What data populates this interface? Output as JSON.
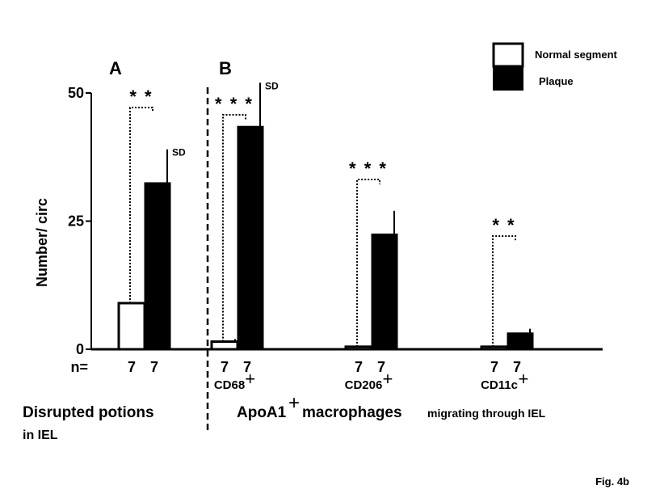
{
  "chart_data": {
    "type": "bar",
    "ylabel": "Number/ circ",
    "ylim": [
      0,
      50
    ],
    "yticks": [
      "0",
      "25",
      "50"
    ],
    "n_prefix": "n=",
    "legend": {
      "position": "top-right",
      "items": [
        {
          "name": "Normal segment",
          "fill": "#ffffff"
        },
        {
          "name": "Plaque",
          "fill": "#000000"
        }
      ]
    },
    "panels": [
      {
        "label": "A",
        "caption": [
          "Disrupted potions",
          "in IEL"
        ]
      },
      {
        "label": "B",
        "caption_main": "ApoA1",
        "caption_plus": "+",
        "caption_mid": "macrophages",
        "caption_small": " migrating through IEL"
      }
    ],
    "groups": [
      {
        "category": "",
        "panel": "A",
        "n": [
          "7",
          "7"
        ],
        "significance": "**",
        "normal": 9,
        "plaque": 32.5,
        "plaque_sd": 6.5,
        "sd_label": "SD"
      },
      {
        "category": "CD68",
        "plus": "+",
        "panel": "B",
        "n": [
          "7",
          "7"
        ],
        "significance": "***",
        "normal": 1.5,
        "normal_sd": 0.5,
        "plaque": 43.5,
        "plaque_sd": 8.5,
        "sd_label": "SD"
      },
      {
        "category": "CD206",
        "plus": "+",
        "panel": "B",
        "n": [
          "7",
          "7"
        ],
        "significance": "***",
        "normal": 0.5,
        "plaque": 22.5,
        "plaque_sd": 4.5
      },
      {
        "category": "CD11c",
        "plus": "+",
        "panel": "B",
        "n": [
          "7",
          "7"
        ],
        "significance": "**",
        "normal": 0.5,
        "plaque": 3.2,
        "plaque_sd": 0.8
      }
    ]
  },
  "figure_label": "Fig. 4b"
}
